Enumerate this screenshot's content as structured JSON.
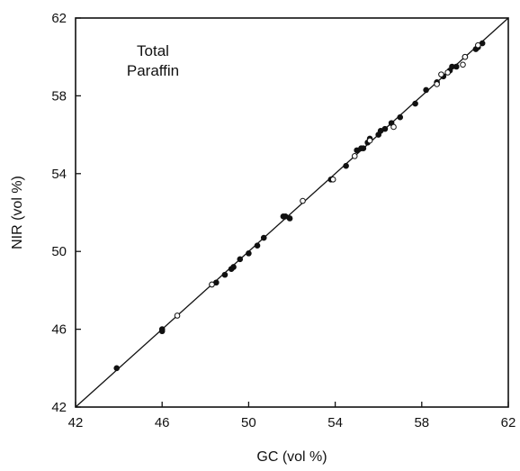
{
  "chart_data": {
    "type": "scatter",
    "title": "",
    "annotation": [
      "Total",
      "Paraffin"
    ],
    "xlabel": "GC (vol %)",
    "ylabel": "NIR (vol %)",
    "xlim": [
      42,
      62
    ],
    "ylim": [
      42,
      62
    ],
    "xticks": [
      42,
      46,
      50,
      54,
      58,
      62
    ],
    "yticks": [
      42,
      46,
      50,
      54,
      58,
      62
    ],
    "grid": false,
    "reference_line": {
      "x": [
        42,
        62
      ],
      "y": [
        42,
        62
      ]
    },
    "series": [
      {
        "marker": "filled-circle",
        "color": "#111111",
        "points": [
          [
            43.9,
            44.0
          ],
          [
            46.0,
            45.9
          ],
          [
            46.0,
            46.0
          ],
          [
            48.3,
            48.3
          ],
          [
            48.5,
            48.4
          ],
          [
            48.9,
            48.8
          ],
          [
            49.2,
            49.1
          ],
          [
            49.3,
            49.2
          ],
          [
            49.6,
            49.6
          ],
          [
            50.0,
            49.9
          ],
          [
            50.4,
            50.3
          ],
          [
            50.7,
            50.7
          ],
          [
            51.6,
            51.8
          ],
          [
            51.7,
            51.8
          ],
          [
            51.9,
            51.7
          ],
          [
            53.8,
            53.7
          ],
          [
            54.5,
            54.4
          ],
          [
            55.0,
            55.2
          ],
          [
            55.2,
            55.3
          ],
          [
            55.3,
            55.3
          ],
          [
            55.5,
            55.6
          ],
          [
            55.6,
            55.8
          ],
          [
            56.0,
            56.0
          ],
          [
            56.1,
            56.2
          ],
          [
            56.3,
            56.3
          ],
          [
            56.6,
            56.6
          ],
          [
            57.0,
            56.9
          ],
          [
            57.7,
            57.6
          ],
          [
            58.2,
            58.3
          ],
          [
            58.7,
            58.7
          ],
          [
            59.0,
            59.0
          ],
          [
            59.3,
            59.3
          ],
          [
            59.4,
            59.5
          ],
          [
            59.6,
            59.5
          ],
          [
            60.0,
            60.0
          ],
          [
            60.5,
            60.4
          ],
          [
            60.6,
            60.5
          ],
          [
            60.8,
            60.7
          ]
        ]
      },
      {
        "marker": "open-circle",
        "color": "#111111",
        "points": [
          [
            46.7,
            46.7
          ],
          [
            48.3,
            48.3
          ],
          [
            52.5,
            52.6
          ],
          [
            53.9,
            53.7
          ],
          [
            54.9,
            54.9
          ],
          [
            55.6,
            55.7
          ],
          [
            56.7,
            56.4
          ],
          [
            58.7,
            58.6
          ],
          [
            58.9,
            59.1
          ],
          [
            59.2,
            59.2
          ],
          [
            59.9,
            59.6
          ],
          [
            60.0,
            60.0
          ],
          [
            60.6,
            60.6
          ]
        ]
      }
    ]
  }
}
